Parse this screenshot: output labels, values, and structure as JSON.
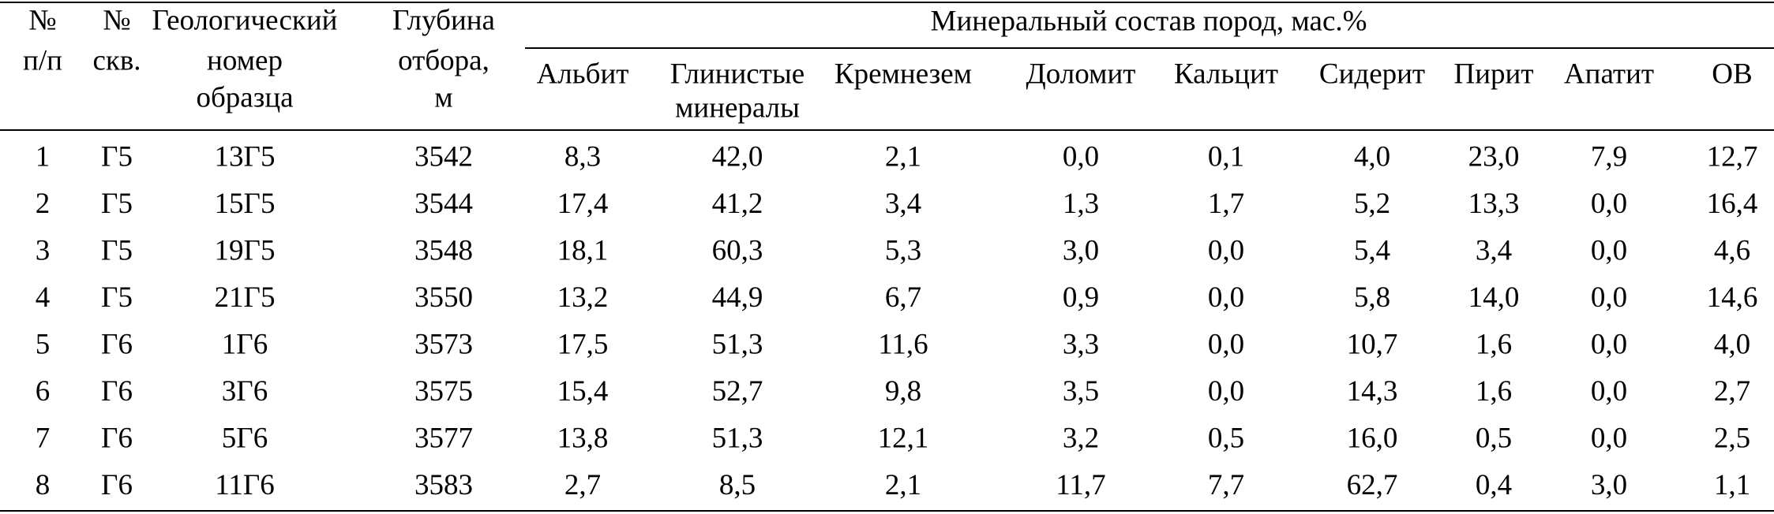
{
  "table": {
    "group_header": "Минеральный состав пород, мас.%",
    "columns": [
      [
        "№",
        "п/п"
      ],
      [
        "№",
        "скв."
      ],
      [
        "Геологический",
        "номер",
        "образца"
      ],
      [
        "Глубина",
        "отбора,",
        "м"
      ],
      [
        "Альбит"
      ],
      [
        "Глинистые",
        "минералы"
      ],
      [
        "Кремнезем"
      ],
      [
        "Доломит"
      ],
      [
        "Кальцит"
      ],
      [
        "Сидерит"
      ],
      [
        "Пирит"
      ],
      [
        "Апатит"
      ],
      [
        "ОВ"
      ]
    ],
    "rows": [
      [
        "1",
        "Г5",
        "13Г5",
        "3542",
        "8,3",
        "42,0",
        "2,1",
        "0,0",
        "0,1",
        "4,0",
        "23,0",
        "7,9",
        "12,7"
      ],
      [
        "2",
        "Г5",
        "15Г5",
        "3544",
        "17,4",
        "41,2",
        "3,4",
        "1,3",
        "1,7",
        "5,2",
        "13,3",
        "0,0",
        "16,4"
      ],
      [
        "3",
        "Г5",
        "19Г5",
        "3548",
        "18,1",
        "60,3",
        "5,3",
        "3,0",
        "0,0",
        "5,4",
        "3,4",
        "0,0",
        "4,6"
      ],
      [
        "4",
        "Г5",
        "21Г5",
        "3550",
        "13,2",
        "44,9",
        "6,7",
        "0,9",
        "0,0",
        "5,8",
        "14,0",
        "0,0",
        "14,6"
      ],
      [
        "5",
        "Г6",
        "1Г6",
        "3573",
        "17,5",
        "51,3",
        "11,6",
        "3,3",
        "0,0",
        "10,7",
        "1,6",
        "0,0",
        "4,0"
      ],
      [
        "6",
        "Г6",
        "3Г6",
        "3575",
        "15,4",
        "52,7",
        "9,8",
        "3,5",
        "0,0",
        "14,3",
        "1,6",
        "0,0",
        "2,7"
      ],
      [
        "7",
        "Г6",
        "5Г6",
        "3577",
        "13,8",
        "51,3",
        "12,1",
        "3,2",
        "0,5",
        "16,0",
        "0,5",
        "0,0",
        "2,5"
      ],
      [
        "8",
        "Г6",
        "11Г6",
        "3583",
        "2,7",
        "8,5",
        "2,1",
        "11,7",
        "7,7",
        "62,7",
        "0,4",
        "3,0",
        "1,1"
      ]
    ]
  }
}
